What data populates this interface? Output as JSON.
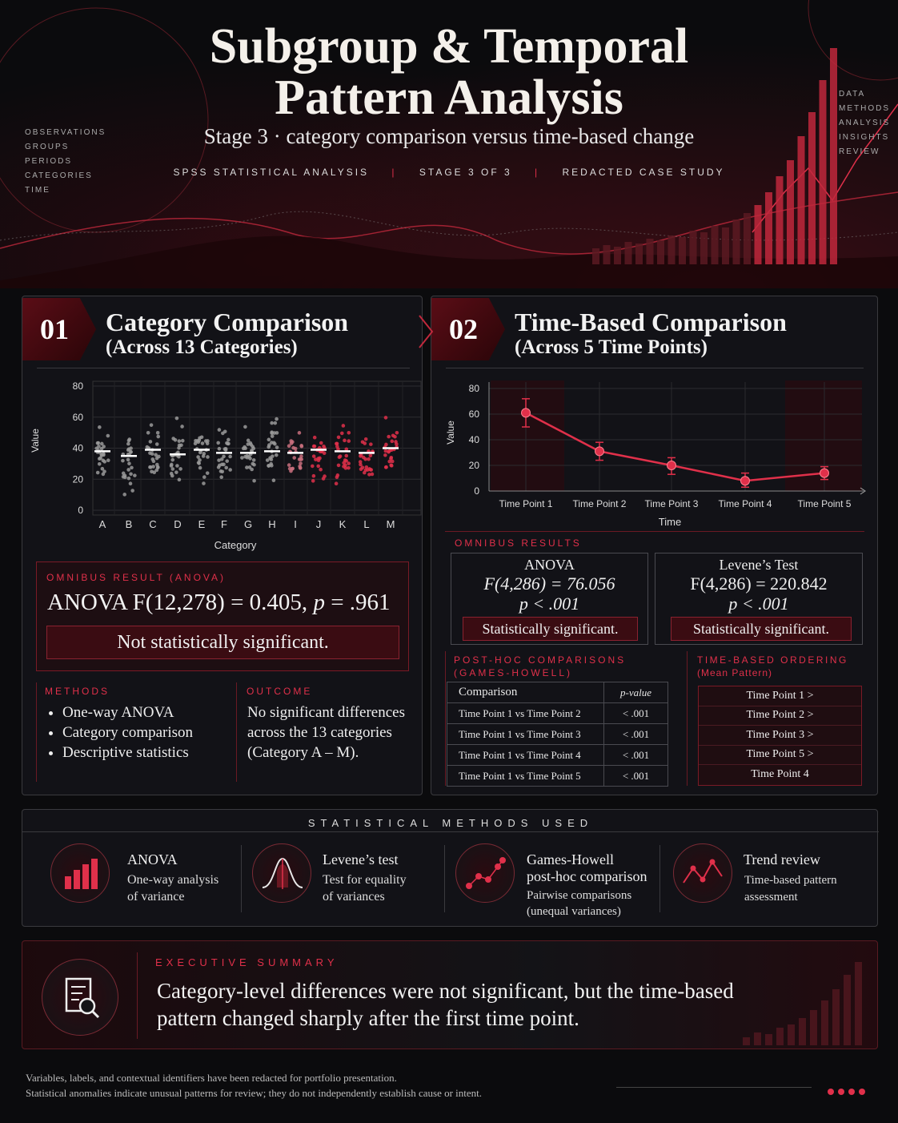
{
  "header": {
    "title_line1": "Subgroup & Temporal",
    "title_line2": "Pattern Analysis",
    "subtitle": "Stage 3 · category comparison versus time-based change",
    "meta": [
      "SPSS STATISTICAL ANALYSIS",
      "STAGE 3 OF 3",
      "REDACTED CASE STUDY"
    ],
    "left_tags": [
      "OBSERVATIONS",
      "GROUPS",
      "PERIODS",
      "CATEGORIES",
      "TIME"
    ],
    "right_tags": [
      "DATA",
      "METHODS",
      "ANALYSIS",
      "INSIGHTS",
      "REVIEW"
    ]
  },
  "section1": {
    "number": "01",
    "title": "Category Comparison",
    "subtitle": "(Across 13 Categories)",
    "result_label": "OMNIBUS RESULT (ANOVA)",
    "result_prefix": "ANOVA F(12,278) = 0.405, ",
    "result_p": "p",
    "result_suffix": " = .961",
    "verdict": "Not statistically significant.",
    "methods_label": "METHODS",
    "methods": [
      "One-way ANOVA",
      "Category comparison",
      "Descriptive statistics"
    ],
    "outcome_label": "OUTCOME",
    "outcome": "No significant differences across the 13 categories (Category A – M)."
  },
  "section2": {
    "number": "02",
    "title": "Time-Based Comparison",
    "subtitle": "(Across 5 Time Points)",
    "omnibus_label": "OMNIBUS RESULTS",
    "anova": {
      "title": "ANOVA",
      "stat": "F(4,286) = 76.056",
      "p": "p < .001",
      "verdict": "Statistically significant."
    },
    "levene": {
      "title": "Levene’s Test",
      "stat": "F(4,286) = 220.842",
      "p": "p < .001",
      "verdict": "Statistically significant."
    },
    "posthoc_label_1": "POST-HOC COMPARISONS",
    "posthoc_label_2": "(GAMES-HOWELL)",
    "posthoc_header": [
      "Comparison",
      "p-value"
    ],
    "posthoc_rows": [
      [
        "Time Point 1 vs Time Point 2",
        "< .001"
      ],
      [
        "Time Point 1 vs Time Point 3",
        "< .001"
      ],
      [
        "Time Point 1 vs Time Point 4",
        "< .001"
      ],
      [
        "Time Point 1 vs Time Point 5",
        "< .001"
      ]
    ],
    "ordering_label_1": "TIME-BASED ORDERING",
    "ordering_label_2": "(Mean Pattern)",
    "ordering": [
      "Time Point 1  >",
      "Time Point 2  >",
      "Time Point 3  >",
      "Time Point 5  >",
      "Time Point 4"
    ]
  },
  "methods_used": {
    "label": "STATISTICAL METHODS USED",
    "items": [
      {
        "title": "ANOVA",
        "desc1": "One-way analysis",
        "desc2": "of variance",
        "icon": "bar-chart-icon"
      },
      {
        "title": "Levene’s test",
        "desc1": "Test for equality",
        "desc2": "of variances",
        "icon": "bell-curve-icon"
      },
      {
        "title": "Games-Howell",
        "title2": "post-hoc comparison",
        "desc1": "Pairwise comparisons",
        "desc2": "(unequal variances)",
        "icon": "scatter-icon"
      },
      {
        "title": "Trend review",
        "desc1": "Time-based pattern",
        "desc2": "assessment",
        "icon": "trend-line-icon"
      }
    ]
  },
  "summary": {
    "label": "EXECUTIVE SUMMARY",
    "line1": "Category-level differences were not significant, but the time-based",
    "line2": "pattern changed sharply after the first time point.",
    "icon": "document-search-icon"
  },
  "footer": {
    "line1": "Variables, labels, and contextual identifiers have been redacted for portfolio presentation.",
    "line2": "Statistical anomalies indicate unusual patterns for review; they do not independently establish cause or intent."
  },
  "colors": {
    "accent": "#e0304a",
    "dark_red": "#3a0c12",
    "grey_dot": "#9a9a9a",
    "background": "#0b0b0d"
  },
  "chart_data": [
    {
      "type": "scatter",
      "title": "",
      "xlabel": "Category",
      "ylabel": "Value",
      "categories": [
        "A",
        "B",
        "C",
        "D",
        "E",
        "F",
        "G",
        "H",
        "I",
        "J",
        "K",
        "L",
        "M"
      ],
      "means": [
        38,
        35,
        39,
        36,
        39,
        37,
        37,
        38,
        37,
        39,
        38,
        37,
        40
      ],
      "spread_min": [
        12,
        8,
        15,
        10,
        14,
        15,
        14,
        12,
        15,
        14,
        13,
        12,
        16
      ],
      "spread_max": [
        60,
        54,
        61,
        69,
        61,
        60,
        61,
        69,
        55,
        57,
        60,
        58,
        66
      ],
      "colors": [
        "grey",
        "grey",
        "grey",
        "grey",
        "grey",
        "grey",
        "grey",
        "grey",
        "pink",
        "red",
        "red",
        "red",
        "red"
      ],
      "ylim": [
        0,
        80
      ],
      "yticks": [
        0,
        20,
        40,
        60,
        80
      ],
      "grid": true
    },
    {
      "type": "line",
      "title": "",
      "xlabel": "Time",
      "ylabel": "Value",
      "categories": [
        "Time Point 1",
        "Time Point 2",
        "Time Point 3",
        "Time Point 4",
        "Time Point 5"
      ],
      "values": [
        61,
        31,
        20,
        8,
        14
      ],
      "error_low": [
        50,
        24,
        13,
        3,
        9
      ],
      "error_high": [
        72,
        38,
        26,
        14,
        19
      ],
      "ylim": [
        0,
        80
      ],
      "yticks": [
        0,
        20,
        40,
        60,
        80
      ],
      "grid": true
    }
  ]
}
